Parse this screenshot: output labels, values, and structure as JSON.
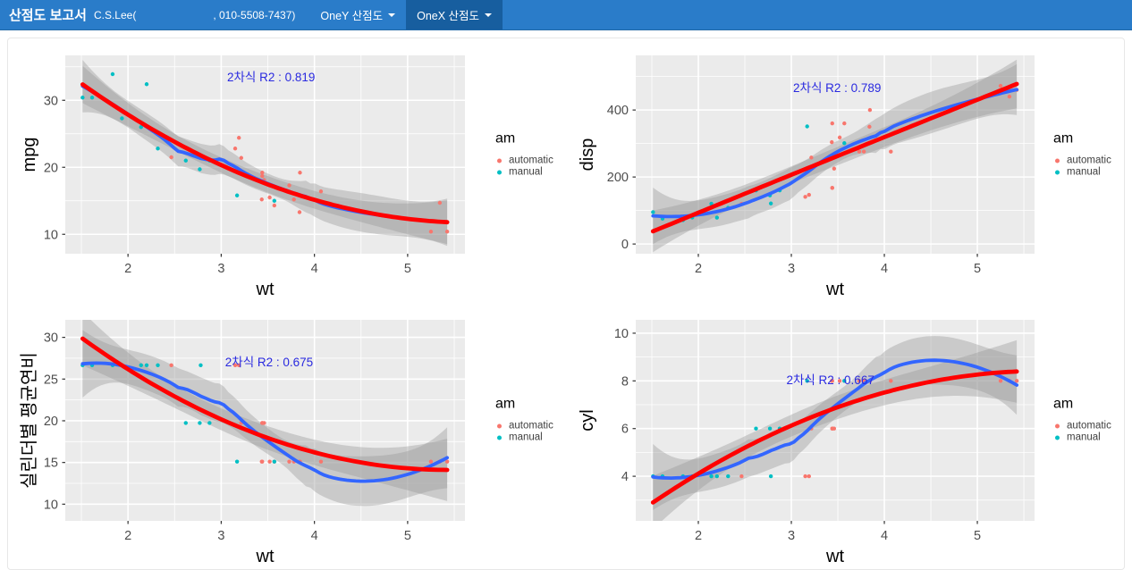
{
  "navbar": {
    "brand": "산점도 보고서",
    "user_prefix": "C.S.Lee(",
    "user_suffix": ", 010-5508-7437)",
    "tabs": [
      {
        "label": "OneY 산점도",
        "active": false
      },
      {
        "label": "OneX 산점도",
        "active": true
      }
    ],
    "colors": {
      "bg": "#2A7CC9",
      "active_bg": "#175E9F",
      "text": "#FFFFFF"
    }
  },
  "chart_data": [
    {
      "type": "scatter",
      "title": "",
      "xlabel": "wt",
      "ylabel": "mpg",
      "annotation": "2차식 R2 : 0.819",
      "annotation_pos": {
        "fx": 0.515,
        "fy": 0.13
      },
      "annotation_color": "#2A2AE0",
      "xlim": [
        1.327,
        5.615
      ],
      "ylim": [
        7.1,
        36.7
      ],
      "xticks": [
        2,
        3,
        4,
        5
      ],
      "yticks": [
        10,
        20,
        30
      ],
      "grid": true,
      "legend_position": "right",
      "legend": {
        "title": "am",
        "items": [
          "automatic",
          "manual"
        ]
      },
      "series_colors": {
        "automatic": "#F8766D",
        "manual": "#00BFC4"
      },
      "smooth_colors": {
        "quadratic": "#FF0000",
        "loess": "#3366FF",
        "band": "#999999"
      },
      "x": [
        2.62,
        2.875,
        2.32,
        3.215,
        3.44,
        3.46,
        3.57,
        3.19,
        3.15,
        3.44,
        3.44,
        4.07,
        3.73,
        3.78,
        5.25,
        5.424,
        5.345,
        2.2,
        1.615,
        1.835,
        2.465,
        3.52,
        3.435,
        3.84,
        3.845,
        1.935,
        2.14,
        1.513,
        3.17,
        2.77,
        3.57,
        2.78
      ],
      "y": [
        21,
        21,
        22.8,
        21.4,
        18.7,
        18.1,
        14.3,
        24.4,
        22.8,
        19.2,
        17.8,
        16.4,
        17.3,
        15.2,
        10.4,
        10.4,
        14.7,
        32.4,
        30.4,
        33.9,
        21.5,
        15.5,
        15.2,
        13.3,
        19.2,
        27.3,
        26,
        30.4,
        15.8,
        19.7,
        15,
        21.4
      ],
      "group": [
        "manual",
        "manual",
        "manual",
        "automatic",
        "automatic",
        "automatic",
        "automatic",
        "automatic",
        "automatic",
        "automatic",
        "automatic",
        "automatic",
        "automatic",
        "automatic",
        "automatic",
        "automatic",
        "automatic",
        "manual",
        "manual",
        "manual",
        "automatic",
        "automatic",
        "automatic",
        "automatic",
        "automatic",
        "manual",
        "manual",
        "manual",
        "manual",
        "manual",
        "manual",
        "manual"
      ]
    },
    {
      "type": "scatter",
      "title": "",
      "xlabel": "wt",
      "ylabel": "disp",
      "annotation": "2차식 R2 : 0.789",
      "annotation_pos": {
        "fx": 0.505,
        "fy": 0.185
      },
      "annotation_color": "#2A2AE0",
      "xlim": [
        1.327,
        5.615
      ],
      "ylim": [
        -29,
        563
      ],
      "xticks": [
        2,
        3,
        4,
        5
      ],
      "yticks": [
        0,
        200,
        400
      ],
      "grid": true,
      "legend_position": "right",
      "legend": {
        "title": "am",
        "items": [
          "automatic",
          "manual"
        ]
      },
      "series_colors": {
        "automatic": "#F8766D",
        "manual": "#00BFC4"
      },
      "smooth_colors": {
        "quadratic": "#FF0000",
        "loess": "#3366FF",
        "band": "#999999"
      },
      "x": [
        2.62,
        2.875,
        2.32,
        3.215,
        3.44,
        3.46,
        3.57,
        3.19,
        3.15,
        3.44,
        3.44,
        4.07,
        3.73,
        3.78,
        5.25,
        5.424,
        5.345,
        2.2,
        1.615,
        1.835,
        2.465,
        3.52,
        3.435,
        3.84,
        3.845,
        1.935,
        2.14,
        1.513,
        3.17,
        2.77,
        3.57,
        2.78
      ],
      "y": [
        160,
        160,
        108,
        258,
        360,
        225,
        360,
        146.7,
        140.8,
        167.6,
        167.6,
        275.8,
        275.8,
        275.8,
        472,
        460,
        440,
        78.7,
        75.7,
        71.1,
        120.1,
        318,
        304,
        350,
        400,
        79,
        120.3,
        95.1,
        351,
        145,
        301,
        121
      ],
      "group": [
        "manual",
        "manual",
        "manual",
        "automatic",
        "automatic",
        "automatic",
        "automatic",
        "automatic",
        "automatic",
        "automatic",
        "automatic",
        "automatic",
        "automatic",
        "automatic",
        "automatic",
        "automatic",
        "automatic",
        "manual",
        "manual",
        "manual",
        "automatic",
        "automatic",
        "automatic",
        "automatic",
        "automatic",
        "manual",
        "manual",
        "manual",
        "manual",
        "manual",
        "manual",
        "manual"
      ]
    },
    {
      "type": "scatter",
      "title": "",
      "xlabel": "wt",
      "ylabel": "실린더별 평균연비",
      "annotation": "2차식 R2 : 0.675",
      "annotation_pos": {
        "fx": 0.51,
        "fy": 0.23
      },
      "annotation_color": "#2A2AE0",
      "xlim": [
        1.327,
        5.615
      ],
      "ylim": [
        8.0,
        32.1
      ],
      "xticks": [
        2,
        3,
        4,
        5
      ],
      "yticks": [
        10,
        15,
        20,
        25,
        30
      ],
      "grid": true,
      "legend_position": "right",
      "legend": {
        "title": "am",
        "items": [
          "automatic",
          "manual"
        ]
      },
      "series_colors": {
        "automatic": "#F8766D",
        "manual": "#00BFC4"
      },
      "smooth_colors": {
        "quadratic": "#FF0000",
        "loess": "#3366FF",
        "band": "#999999"
      },
      "x": [
        2.62,
        2.875,
        2.32,
        3.215,
        3.44,
        3.46,
        3.57,
        3.19,
        3.15,
        3.44,
        3.44,
        4.07,
        3.73,
        3.78,
        5.25,
        5.424,
        5.345,
        2.2,
        1.615,
        1.835,
        2.465,
        3.52,
        3.435,
        3.84,
        3.845,
        1.935,
        2.14,
        1.513,
        3.17,
        2.77,
        3.57,
        2.78
      ],
      "y": [
        19.74,
        19.74,
        26.66,
        19.74,
        15.1,
        19.74,
        15.1,
        26.66,
        26.66,
        19.74,
        19.74,
        15.1,
        15.1,
        15.1,
        15.1,
        15.1,
        15.1,
        26.66,
        26.66,
        26.66,
        26.66,
        15.1,
        15.1,
        15.1,
        15.1,
        26.66,
        26.66,
        26.66,
        15.1,
        19.74,
        15.1,
        26.66
      ],
      "group": [
        "manual",
        "manual",
        "manual",
        "automatic",
        "automatic",
        "automatic",
        "automatic",
        "automatic",
        "automatic",
        "automatic",
        "automatic",
        "automatic",
        "automatic",
        "automatic",
        "automatic",
        "automatic",
        "automatic",
        "manual",
        "manual",
        "manual",
        "automatic",
        "automatic",
        "automatic",
        "automatic",
        "automatic",
        "manual",
        "manual",
        "manual",
        "manual",
        "manual",
        "manual",
        "manual"
      ]
    },
    {
      "type": "scatter",
      "title": "",
      "xlabel": "wt",
      "ylabel": "cyl",
      "annotation": "2차식 R2 : 0.667",
      "annotation_pos": {
        "fx": 0.488,
        "fy": 0.32
      },
      "annotation_color": "#2A2AE0",
      "xlim": [
        1.327,
        5.615
      ],
      "ylim": [
        2.13,
        10.56
      ],
      "xticks": [
        2,
        3,
        4,
        5
      ],
      "yticks": [
        4,
        6,
        8,
        10
      ],
      "grid": true,
      "legend_position": "right",
      "legend": {
        "title": "am",
        "items": [
          "automatic",
          "manual"
        ]
      },
      "series_colors": {
        "automatic": "#F8766D",
        "manual": "#00BFC4"
      },
      "smooth_colors": {
        "quadratic": "#FF0000",
        "loess": "#3366FF",
        "band": "#999999"
      },
      "x": [
        2.62,
        2.875,
        2.32,
        3.215,
        3.44,
        3.46,
        3.57,
        3.19,
        3.15,
        3.44,
        3.44,
        4.07,
        3.73,
        3.78,
        5.25,
        5.424,
        5.345,
        2.2,
        1.615,
        1.835,
        2.465,
        3.52,
        3.435,
        3.84,
        3.845,
        1.935,
        2.14,
        1.513,
        3.17,
        2.77,
        3.57,
        2.78
      ],
      "y": [
        6,
        6,
        4,
        6,
        8,
        6,
        8,
        4,
        4,
        6,
        6,
        8,
        8,
        8,
        8,
        8,
        8,
        4,
        4,
        4,
        4,
        8,
        8,
        8,
        8,
        4,
        4,
        4,
        8,
        6,
        8,
        4
      ],
      "group": [
        "manual",
        "manual",
        "manual",
        "automatic",
        "automatic",
        "automatic",
        "automatic",
        "automatic",
        "automatic",
        "automatic",
        "automatic",
        "automatic",
        "automatic",
        "automatic",
        "automatic",
        "automatic",
        "automatic",
        "manual",
        "manual",
        "manual",
        "automatic",
        "automatic",
        "automatic",
        "automatic",
        "automatic",
        "manual",
        "manual",
        "manual",
        "manual",
        "manual",
        "manual",
        "manual"
      ]
    }
  ]
}
